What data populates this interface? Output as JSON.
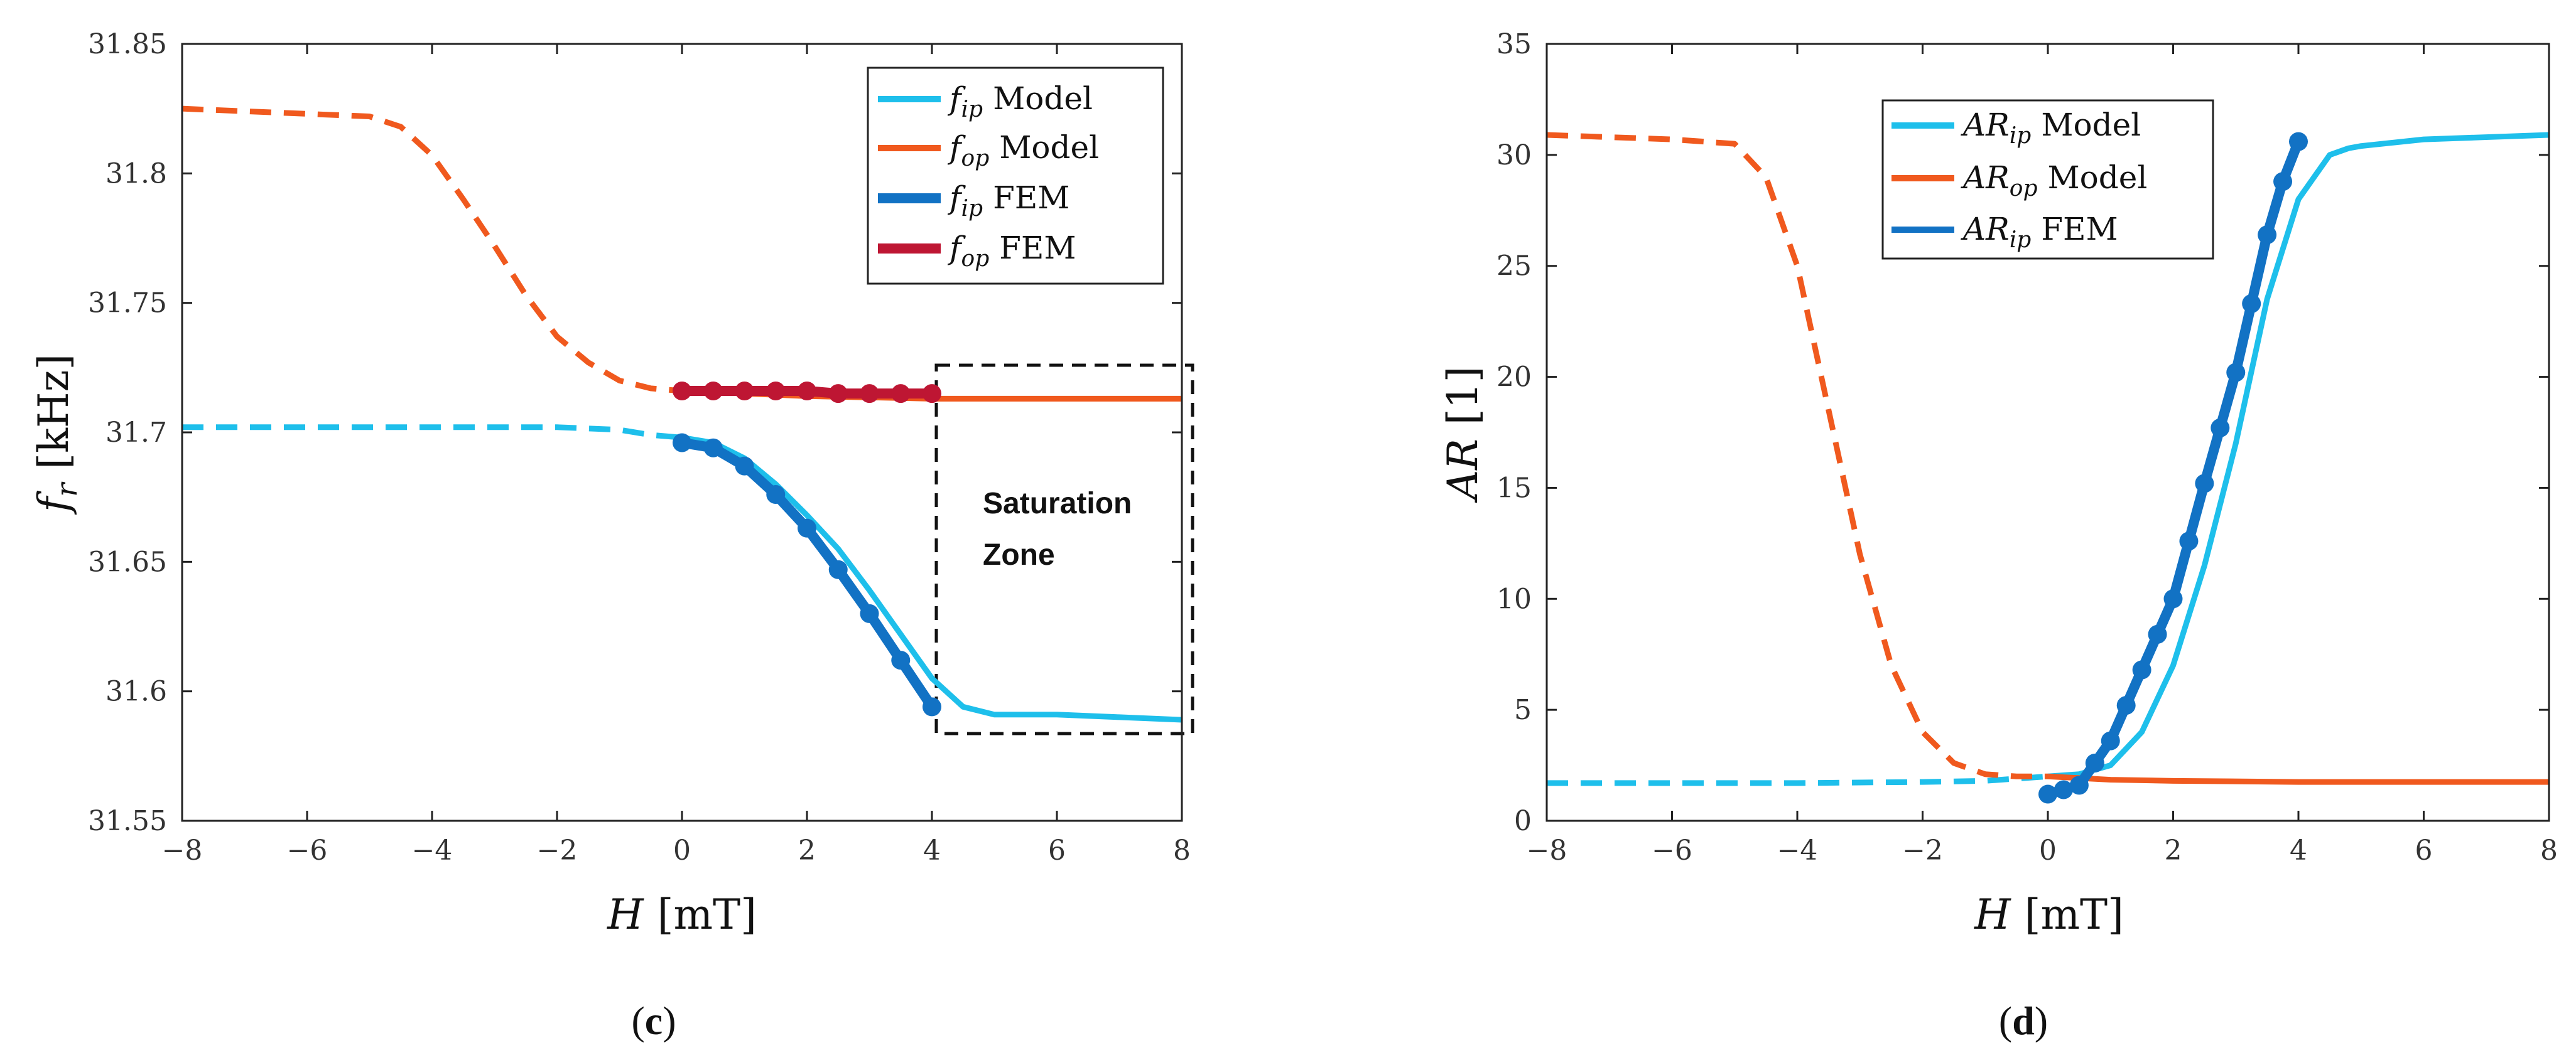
{
  "chart_data": [
    {
      "type": "line",
      "panel": "c",
      "panel_label": "c",
      "xlabel": {
        "symbol": "H",
        "unit": "[mT]"
      },
      "ylabel": {
        "symbol": "f",
        "sub": "r",
        "unit": "[kHz]"
      },
      "xlim": [
        -8,
        8
      ],
      "ylim": [
        31.55,
        31.85
      ],
      "xticks": [
        -8,
        -6,
        -4,
        -2,
        0,
        2,
        4,
        6,
        8
      ],
      "xtick_labels": [
        "−8",
        "−6",
        "−4",
        "−2",
        "0",
        "2",
        "4",
        "6",
        "8"
      ],
      "yticks": [
        31.55,
        31.6,
        31.65,
        31.7,
        31.75,
        31.8,
        31.85
      ],
      "ytick_labels": [
        "31.55",
        "31.6",
        "31.65",
        "31.7",
        "31.75",
        "31.8",
        "31.85"
      ],
      "legend_position": "top-right",
      "annotation": {
        "lines": [
          "Saturation",
          "Zone"
        ],
        "box_x": [
          4.0,
          8.2
        ],
        "box_y": [
          31.585,
          31.728
        ]
      },
      "series": [
        {
          "name": "f_ip Model",
          "sym": "f",
          "sub": "ip",
          "label": "Model",
          "color": "#1EBFEB",
          "style": "dashed",
          "x": [
            -8,
            -6,
            -4,
            -2,
            -1,
            -0.5,
            0
          ],
          "y": [
            31.702,
            31.702,
            31.702,
            31.702,
            31.701,
            31.699,
            31.698
          ]
        },
        {
          "name": "f_ip Model (solid)",
          "color": "#1EBFEB",
          "style": "solid",
          "legend": false,
          "x": [
            0,
            0.5,
            1,
            1.5,
            2,
            2.5,
            3,
            3.5,
            4,
            4.5,
            5,
            6,
            7,
            8
          ],
          "y": [
            31.698,
            31.696,
            31.69,
            31.68,
            31.668,
            31.655,
            31.639,
            31.622,
            31.605,
            31.594,
            31.591,
            31.591,
            31.59,
            31.589
          ]
        },
        {
          "name": "f_op Model",
          "sym": "f",
          "sub": "op",
          "label": "Model",
          "color": "#F0591E",
          "style": "dashed",
          "x": [
            -8,
            -7,
            -6,
            -5,
            -4.5,
            -4,
            -3.5,
            -3,
            -2.5,
            -2,
            -1.5,
            -1,
            -0.5,
            0
          ],
          "y": [
            31.825,
            31.824,
            31.823,
            31.822,
            31.818,
            31.807,
            31.79,
            31.772,
            31.753,
            31.737,
            31.727,
            31.72,
            31.717,
            31.716
          ]
        },
        {
          "name": "f_op Model (solid)",
          "color": "#F0591E",
          "style": "solid",
          "legend": false,
          "x": [
            0,
            2,
            4,
            6,
            8
          ],
          "y": [
            31.716,
            31.714,
            31.713,
            31.713,
            31.713
          ]
        },
        {
          "name": "f_ip FEM",
          "sym": "f",
          "sub": "ip",
          "label": "FEM",
          "color": "#1272C4",
          "style": "markers",
          "x": [
            0,
            0.5,
            1,
            1.5,
            2,
            2.5,
            3,
            3.5,
            4
          ],
          "y": [
            31.696,
            31.694,
            31.687,
            31.676,
            31.663,
            31.647,
            31.63,
            31.612,
            31.594
          ]
        },
        {
          "name": "f_op FEM",
          "sym": "f",
          "sub": "op",
          "label": "FEM",
          "color": "#BE1633",
          "style": "markers",
          "x": [
            0,
            0.5,
            1,
            1.5,
            2,
            2.5,
            3,
            3.5,
            4
          ],
          "y": [
            31.716,
            31.716,
            31.716,
            31.716,
            31.716,
            31.715,
            31.715,
            31.715,
            31.715
          ]
        }
      ]
    },
    {
      "type": "line",
      "panel": "d",
      "panel_label": "d",
      "xlabel": {
        "symbol": "H",
        "unit": "[mT]"
      },
      "ylabel": {
        "symbol": "AR",
        "unit": "[1]"
      },
      "xlim": [
        -8,
        8
      ],
      "ylim": [
        0,
        35
      ],
      "xticks": [
        -8,
        -6,
        -4,
        -2,
        0,
        2,
        4,
        6,
        8
      ],
      "xtick_labels": [
        "−8",
        "−6",
        "−4",
        "−2",
        "0",
        "2",
        "4",
        "6",
        "8"
      ],
      "yticks": [
        0,
        5,
        10,
        15,
        20,
        25,
        30,
        35
      ],
      "ytick_labels": [
        "0",
        "5",
        "10",
        "15",
        "20",
        "25",
        "30",
        "35"
      ],
      "legend_position": "top-center",
      "series": [
        {
          "name": "AR_ip Model",
          "sym": "AR",
          "sub": "ip",
          "label": "Model",
          "color": "#1EBFEB",
          "style": "dashed",
          "x": [
            -8,
            -6,
            -4,
            -2,
            -1,
            0
          ],
          "y": [
            1.7,
            1.7,
            1.7,
            1.75,
            1.8,
            2.0
          ]
        },
        {
          "name": "AR_ip Model (solid)",
          "color": "#1EBFEB",
          "style": "solid",
          "legend": false,
          "x": [
            0,
            0.5,
            1,
            1.5,
            2,
            2.5,
            3,
            3.5,
            4,
            4.5,
            4.8,
            5,
            6,
            7,
            8
          ],
          "y": [
            2.0,
            2.1,
            2.5,
            4.0,
            7.0,
            11.5,
            17.0,
            23.5,
            28.0,
            30.0,
            30.3,
            30.4,
            30.7,
            30.8,
            30.9
          ]
        },
        {
          "name": "AR_op Model",
          "sym": "AR",
          "sub": "op",
          "label": "Model",
          "color": "#F0591E",
          "style": "dashed",
          "x": [
            -8,
            -6,
            -5,
            -4.5,
            -4,
            -3.5,
            -3,
            -2.5,
            -2,
            -1.5,
            -1,
            -0.5,
            0
          ],
          "y": [
            30.9,
            30.7,
            30.5,
            29.0,
            25.0,
            18.5,
            12.0,
            7.0,
            4.0,
            2.6,
            2.1,
            2.0,
            2.0
          ]
        },
        {
          "name": "AR_op Model (solid)",
          "color": "#F0591E",
          "style": "solid",
          "legend": false,
          "x": [
            0,
            1,
            2,
            4,
            6,
            8
          ],
          "y": [
            2.0,
            1.85,
            1.8,
            1.75,
            1.75,
            1.75
          ]
        },
        {
          "name": "AR_ip FEM",
          "sym": "AR",
          "sub": "ip",
          "label": "FEM",
          "color": "#1272C4",
          "style": "markers",
          "x": [
            0,
            0.25,
            0.5,
            0.75,
            1.0,
            1.25,
            1.5,
            1.75,
            2.0,
            2.25,
            2.5,
            2.75,
            3.0,
            3.25,
            3.5,
            3.75,
            4.0
          ],
          "y": [
            1.2,
            1.4,
            1.6,
            2.6,
            3.6,
            5.2,
            6.8,
            8.4,
            10.0,
            12.6,
            15.2,
            17.7,
            20.2,
            23.3,
            26.4,
            28.8,
            30.6
          ]
        }
      ]
    }
  ]
}
